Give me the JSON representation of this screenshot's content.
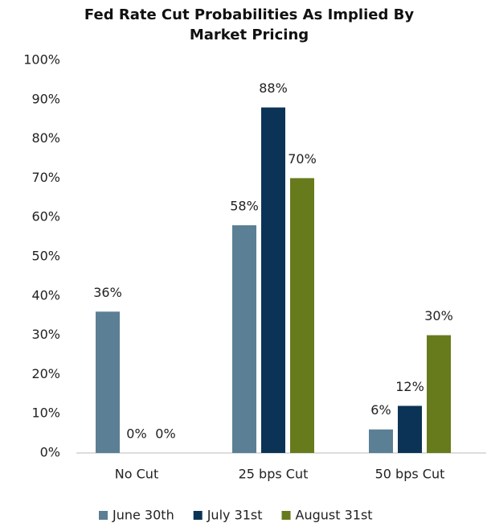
{
  "chart_data": {
    "type": "bar",
    "title": "Fed Rate Cut Probabilities As Implied By Market Pricing",
    "categories": [
      "No Cut",
      "25 bps Cut",
      "50 bps Cut"
    ],
    "series": [
      {
        "name": "June 30th",
        "color": "#5b7f95",
        "values": [
          36,
          58,
          6
        ],
        "value_labels": [
          "36%",
          "58%",
          "6%"
        ]
      },
      {
        "name": "July 31st",
        "color": "#0b3356",
        "values": [
          0,
          88,
          12
        ],
        "value_labels": [
          "0%",
          "88%",
          "12%"
        ]
      },
      {
        "name": "August 31st",
        "color": "#677b1c",
        "values": [
          0,
          70,
          30
        ],
        "value_labels": [
          "0%",
          "70%",
          "30%"
        ]
      }
    ],
    "ylim": [
      0,
      100
    ],
    "yticks": [
      {
        "value": 0,
        "label": "0%"
      },
      {
        "value": 10,
        "label": "10%"
      },
      {
        "value": 20,
        "label": "20%"
      },
      {
        "value": 30,
        "label": "30%"
      },
      {
        "value": 40,
        "label": "40%"
      },
      {
        "value": 50,
        "label": "50%"
      },
      {
        "value": 60,
        "label": "60%"
      },
      {
        "value": 70,
        "label": "70%"
      },
      {
        "value": 80,
        "label": "80%"
      },
      {
        "value": 90,
        "label": "90%"
      },
      {
        "value": 100,
        "label": "100%"
      }
    ],
    "grid": false,
    "legend": "bottom"
  }
}
